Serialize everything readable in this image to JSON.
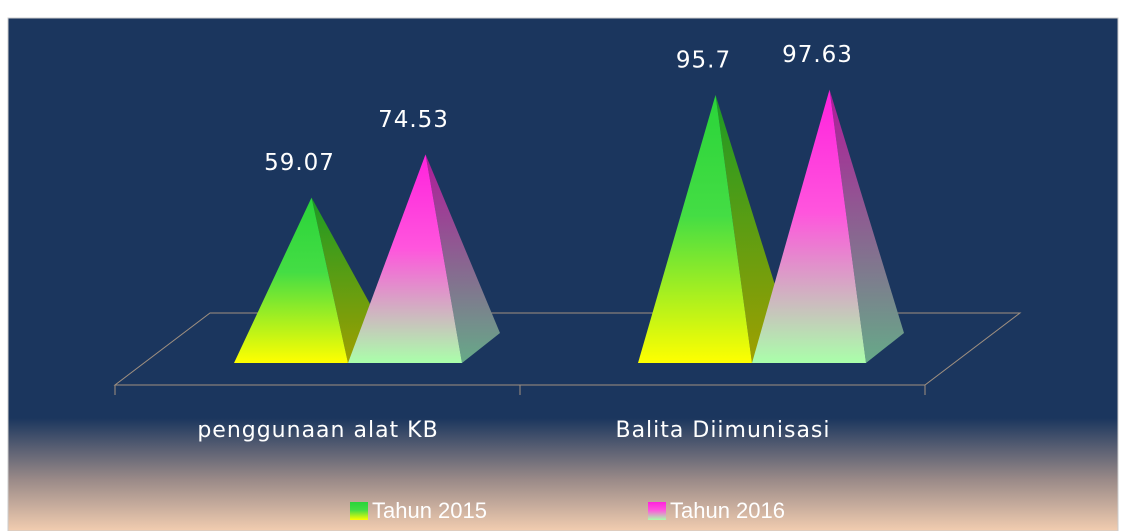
{
  "chart_data": {
    "type": "pyramid",
    "categories": [
      "penggunaan alat KB",
      "Balita Diimunisasi"
    ],
    "series": [
      {
        "name": "Tahun 2015",
        "color": "#22dd33",
        "values": [
          59.07,
          95.7
        ]
      },
      {
        "name": "Tahun 2016",
        "color": "#ff33dd",
        "values": [
          74.53,
          97.63
        ]
      }
    ]
  }
}
